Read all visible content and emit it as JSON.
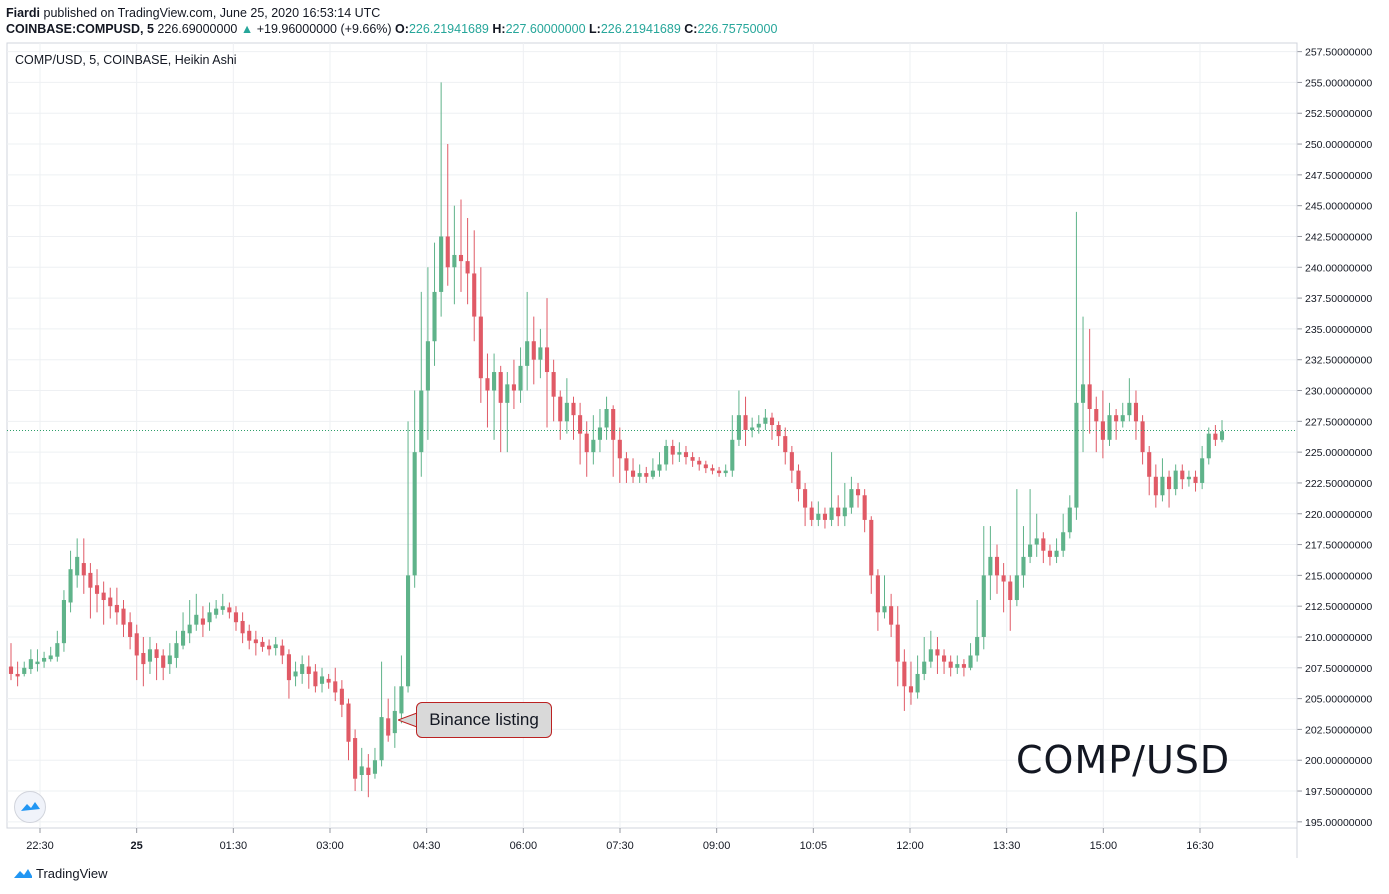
{
  "header": {
    "author": "Fiardi",
    "published": " published on TradingView.com, June 25, 2020 16:53:14 UTC",
    "symbol": "COINBASE:COMPUSD, 5",
    "last": "226.69000000",
    "change": "+19.96000000 (+9.66%)",
    "o_label": "O:",
    "o_value": "226.21941689",
    "h_label": "H:",
    "h_value": "227.60000000",
    "l_label": "L:",
    "l_value": "226.21941689",
    "c_label": "C:",
    "c_value": "226.75750000"
  },
  "legend_title": "COMP/USD, 5, COINBASE, Heikin Ashi",
  "big_label": "COMP/USD",
  "annotation": "Binance listing",
  "footer_brand": "TradingView",
  "colors": {
    "up": "#5fb38a",
    "down": "#e05a66",
    "grid": "#eef0f3",
    "price_line": "#2e9e6a"
  },
  "chart_data": {
    "type": "candlestick",
    "style": "Heikin Ashi",
    "y_range": [
      194.5,
      258.2
    ],
    "y_ticks": [
      195,
      197.5,
      200,
      202.5,
      205,
      207.5,
      210,
      212.5,
      215,
      217.5,
      220,
      222.5,
      225,
      227.5,
      230,
      232.5,
      235,
      237.5,
      240,
      242.5,
      245,
      247.5,
      250,
      252.5,
      255,
      257.5
    ],
    "y_tick_labels": [
      "195.00000000",
      "197.50000000",
      "200.00000000",
      "202.50000000",
      "205.00000000",
      "207.50000000",
      "210.00000000",
      "212.50000000",
      "215.00000000",
      "217.50000000",
      "220.00000000",
      "222.50000000",
      "225.00000000",
      "227.50000000",
      "230.00000000",
      "232.50000000",
      "235.00000000",
      "237.50000000",
      "240.00000000",
      "242.50000000",
      "245.00000000",
      "247.50000000",
      "250.00000000",
      "252.50000000",
      "255.00000000",
      "257.50000000"
    ],
    "x_labels": [
      "22:30",
      "25",
      "01:30",
      "03:00",
      "04:30",
      "06:00",
      "07:30",
      "09:00",
      "10:05",
      "12:00",
      "13:30",
      "15:00",
      "16:30"
    ],
    "current_price": 226.76,
    "grid": true,
    "candles": [
      [
        207.6,
        207.0,
        209.5,
        206.5
      ],
      [
        207.0,
        206.8,
        208.0,
        206.0
      ],
      [
        207.0,
        207.5,
        208.0,
        206.8
      ],
      [
        207.4,
        208.2,
        209.0,
        207.0
      ],
      [
        207.8,
        208.0,
        209.0,
        207.2
      ],
      [
        208.0,
        208.3,
        208.8,
        207.5
      ],
      [
        208.2,
        208.5,
        209.2,
        208.0
      ],
      [
        208.4,
        209.5,
        210.5,
        208.0
      ],
      [
        209.5,
        213.0,
        213.8,
        208.8
      ],
      [
        212.8,
        215.5,
        217.0,
        212.0
      ],
      [
        215.0,
        216.5,
        218.0,
        214.0
      ],
      [
        216.0,
        215.0,
        218.0,
        213.5
      ],
      [
        215.2,
        214.0,
        216.0,
        211.5
      ],
      [
        214.2,
        213.5,
        215.5,
        212.0
      ],
      [
        213.6,
        213.0,
        214.5,
        211.0
      ],
      [
        213.2,
        212.5,
        214.0,
        211.5
      ],
      [
        212.6,
        212.0,
        214.0,
        211.0
      ],
      [
        212.3,
        211.0,
        213.0,
        210.0
      ],
      [
        211.2,
        210.0,
        212.0,
        209.0
      ],
      [
        210.3,
        208.5,
        211.0,
        206.5
      ],
      [
        208.7,
        207.8,
        210.0,
        206.0
      ],
      [
        208.0,
        209.0,
        210.0,
        207.0
      ],
      [
        209.0,
        208.3,
        209.5,
        206.5
      ],
      [
        208.5,
        207.5,
        209.0,
        206.5
      ],
      [
        207.8,
        208.5,
        209.5,
        207.0
      ],
      [
        208.3,
        209.5,
        210.5,
        207.5
      ],
      [
        209.3,
        210.5,
        212.0,
        209.0
      ],
      [
        210.3,
        211.0,
        213.0,
        209.5
      ],
      [
        211.0,
        211.8,
        213.5,
        210.5
      ],
      [
        211.5,
        211.0,
        212.5,
        210.0
      ],
      [
        211.2,
        212.0,
        212.8,
        210.5
      ],
      [
        211.8,
        212.3,
        213.0,
        211.5
      ],
      [
        212.2,
        212.5,
        213.5,
        211.8
      ],
      [
        212.4,
        212.0,
        212.8,
        211.5
      ],
      [
        212.0,
        211.2,
        212.5,
        210.5
      ],
      [
        211.3,
        210.3,
        212.0,
        209.5
      ],
      [
        210.5,
        209.7,
        211.0,
        209.0
      ],
      [
        209.8,
        209.5,
        210.5,
        208.5
      ],
      [
        209.6,
        209.2,
        210.0,
        208.8
      ],
      [
        209.3,
        209.0,
        209.8,
        208.5
      ],
      [
        209.1,
        209.4,
        210.0,
        208.5
      ],
      [
        209.3,
        208.5,
        209.8,
        207.8
      ],
      [
        208.6,
        206.5,
        209.0,
        205.0
      ],
      [
        206.8,
        207.2,
        208.0,
        206.0
      ],
      [
        207.0,
        207.8,
        208.5,
        206.2
      ],
      [
        207.6,
        207.0,
        208.5,
        205.8
      ],
      [
        207.2,
        206.0,
        207.8,
        205.5
      ],
      [
        206.2,
        206.8,
        207.5,
        205.5
      ],
      [
        206.6,
        206.3,
        207.0,
        205.8
      ],
      [
        206.4,
        205.5,
        207.5,
        204.8
      ],
      [
        205.8,
        204.5,
        206.5,
        203.5
      ],
      [
        204.6,
        201.5,
        205.0,
        200.0
      ],
      [
        201.8,
        198.5,
        202.5,
        197.5
      ],
      [
        198.8,
        199.5,
        201.0,
        197.5
      ],
      [
        199.4,
        198.8,
        200.5,
        197.0
      ],
      [
        198.9,
        200.0,
        201.0,
        198.5
      ],
      [
        200.0,
        203.5,
        208.0,
        199.5
      ],
      [
        203.4,
        202.0,
        205.0,
        201.5
      ],
      [
        202.2,
        204.0,
        206.0,
        201.0
      ],
      [
        203.8,
        206.0,
        208.5,
        203.0
      ],
      [
        206.0,
        215.0,
        227.5,
        205.5
      ],
      [
        215.0,
        225.0,
        230.0,
        214.0
      ],
      [
        225.0,
        230.0,
        238.0,
        223.0
      ],
      [
        230.0,
        234.0,
        240.0,
        226.0
      ],
      [
        234.0,
        238.0,
        242.0,
        232.0
      ],
      [
        238.0,
        242.5,
        255.0,
        236.0
      ],
      [
        242.5,
        240.0,
        250.0,
        238.5
      ],
      [
        240.0,
        241.0,
        245.0,
        237.0
      ],
      [
        241.0,
        240.5,
        245.5,
        238.0
      ],
      [
        240.5,
        239.5,
        244.0,
        237.0
      ],
      [
        239.5,
        236.0,
        243.0,
        234.0
      ],
      [
        236.0,
        231.0,
        240.0,
        229.0
      ],
      [
        231.0,
        230.0,
        233.0,
        227.0
      ],
      [
        230.0,
        231.5,
        233.0,
        226.0
      ],
      [
        231.5,
        229.0,
        232.0,
        225.0
      ],
      [
        229.0,
        230.5,
        231.5,
        225.0
      ],
      [
        230.5,
        230.0,
        232.5,
        228.5
      ],
      [
        230.0,
        232.0,
        233.5,
        229.0
      ],
      [
        232.0,
        234.0,
        238.0,
        230.0
      ],
      [
        234.0,
        232.5,
        236.0,
        230.5
      ],
      [
        232.5,
        233.5,
        235.0,
        231.0
      ],
      [
        233.5,
        231.5,
        237.5,
        227.0
      ],
      [
        231.5,
        229.5,
        232.5,
        227.5
      ],
      [
        229.5,
        227.5,
        230.0,
        226.0
      ],
      [
        227.5,
        229.0,
        231.0,
        226.5
      ],
      [
        229.0,
        228.0,
        229.5,
        226.0
      ],
      [
        228.0,
        226.5,
        229.0,
        224.0
      ],
      [
        226.5,
        225.0,
        227.5,
        223.0
      ],
      [
        225.0,
        226.0,
        228.0,
        224.0
      ],
      [
        226.0,
        227.0,
        228.5,
        225.0
      ],
      [
        227.0,
        228.5,
        229.5,
        226.0
      ],
      [
        228.5,
        226.0,
        228.8,
        223.0
      ],
      [
        226.0,
        224.5,
        227.0,
        222.5
      ],
      [
        224.5,
        223.5,
        225.0,
        222.5
      ],
      [
        223.5,
        223.0,
        224.5,
        222.5
      ],
      [
        223.0,
        223.3,
        224.0,
        222.5
      ],
      [
        223.3,
        223.0,
        223.8,
        222.5
      ],
      [
        223.0,
        223.5,
        224.5,
        222.8
      ],
      [
        223.5,
        224.0,
        225.0,
        223.0
      ],
      [
        224.0,
        225.5,
        226.0,
        223.5
      ],
      [
        225.5,
        224.8,
        226.0,
        224.0
      ],
      [
        224.8,
        225.0,
        225.8,
        224.2
      ],
      [
        225.0,
        224.6,
        225.5,
        224.0
      ],
      [
        224.6,
        224.3,
        225.0,
        223.8
      ],
      [
        224.3,
        224.0,
        224.6,
        223.5
      ],
      [
        224.0,
        223.7,
        224.3,
        223.3
      ],
      [
        223.7,
        223.5,
        224.0,
        223.2
      ],
      [
        223.5,
        223.3,
        223.8,
        223.0
      ],
      [
        223.3,
        223.5,
        224.0,
        223.0
      ],
      [
        223.5,
        226.0,
        228.0,
        223.0
      ],
      [
        226.0,
        228.0,
        230.0,
        225.5
      ],
      [
        228.0,
        226.8,
        229.5,
        225.5
      ],
      [
        226.8,
        227.0,
        227.8,
        226.2
      ],
      [
        227.0,
        227.3,
        228.0,
        226.5
      ],
      [
        227.3,
        227.8,
        228.5,
        226.8
      ],
      [
        227.8,
        227.2,
        228.2,
        226.0
      ],
      [
        227.2,
        226.3,
        227.5,
        225.5
      ],
      [
        226.3,
        225.0,
        227.0,
        224.0
      ],
      [
        225.0,
        223.5,
        225.5,
        222.5
      ],
      [
        223.5,
        222.0,
        224.0,
        221.0
      ],
      [
        222.0,
        220.5,
        222.5,
        219.0
      ],
      [
        220.5,
        219.5,
        221.0,
        219.0
      ],
      [
        219.5,
        220.0,
        221.0,
        219.0
      ],
      [
        220.0,
        219.5,
        220.5,
        218.8
      ],
      [
        219.5,
        220.5,
        225.0,
        219.0
      ],
      [
        220.5,
        219.8,
        221.5,
        219.0
      ],
      [
        219.8,
        220.5,
        222.5,
        219.0
      ],
      [
        220.5,
        222.0,
        223.0,
        220.0
      ],
      [
        222.0,
        221.5,
        222.5,
        220.5
      ],
      [
        221.5,
        219.5,
        222.0,
        218.5
      ],
      [
        219.5,
        215.0,
        219.8,
        213.5
      ],
      [
        215.0,
        212.0,
        215.5,
        210.5
      ],
      [
        212.0,
        212.5,
        215.0,
        211.5
      ],
      [
        212.5,
        211.0,
        213.5,
        210.0
      ],
      [
        211.0,
        208.0,
        212.5,
        206.0
      ],
      [
        208.0,
        206.0,
        209.0,
        204.0
      ],
      [
        206.0,
        205.5,
        208.0,
        204.5
      ],
      [
        205.5,
        207.0,
        208.5,
        205.0
      ],
      [
        207.0,
        208.0,
        210.0,
        206.5
      ],
      [
        208.0,
        209.0,
        210.5,
        207.5
      ],
      [
        209.0,
        208.5,
        210.0,
        207.0
      ],
      [
        208.5,
        208.0,
        209.0,
        207.0
      ],
      [
        208.0,
        207.5,
        208.5,
        206.8
      ],
      [
        207.5,
        207.8,
        208.5,
        207.0
      ],
      [
        207.8,
        207.5,
        208.2,
        206.8
      ],
      [
        207.5,
        208.5,
        209.5,
        207.3
      ],
      [
        208.5,
        210.0,
        213.0,
        208.0
      ],
      [
        210.0,
        215.0,
        219.0,
        209.0
      ],
      [
        215.0,
        216.5,
        219.0,
        213.0
      ],
      [
        216.5,
        215.0,
        217.5,
        213.5
      ],
      [
        215.0,
        214.5,
        216.0,
        212.0
      ],
      [
        214.5,
        213.0,
        215.0,
        210.5
      ],
      [
        213.0,
        215.0,
        222.0,
        212.5
      ],
      [
        215.0,
        216.5,
        219.0,
        214.0
      ],
      [
        216.5,
        217.5,
        222.0,
        216.0
      ],
      [
        217.5,
        218.0,
        220.0,
        216.5
      ],
      [
        218.0,
        217.0,
        218.5,
        216.0
      ],
      [
        217.0,
        216.5,
        217.5,
        215.8
      ],
      [
        216.5,
        217.0,
        218.0,
        216.0
      ],
      [
        217.0,
        218.5,
        220.0,
        216.5
      ],
      [
        218.5,
        220.5,
        221.5,
        218.0
      ],
      [
        220.5,
        229.0,
        244.5,
        219.5
      ],
      [
        229.0,
        230.5,
        236.0,
        225.0
      ],
      [
        230.5,
        228.5,
        235.0,
        226.5
      ],
      [
        228.5,
        227.5,
        229.5,
        225.0
      ],
      [
        227.5,
        226.0,
        230.0,
        224.5
      ],
      [
        226.0,
        228.0,
        229.0,
        225.5
      ],
      [
        228.0,
        227.5,
        228.5,
        226.0
      ],
      [
        227.5,
        228.0,
        229.0,
        227.0
      ],
      [
        228.0,
        229.0,
        231.0,
        227.5
      ],
      [
        229.0,
        227.5,
        230.0,
        226.0
      ],
      [
        227.5,
        225.0,
        228.0,
        224.0
      ],
      [
        225.0,
        223.0,
        225.5,
        221.5
      ],
      [
        223.0,
        221.5,
        224.0,
        220.5
      ],
      [
        221.5,
        223.0,
        224.5,
        221.0
      ],
      [
        223.0,
        222.0,
        223.5,
        220.5
      ],
      [
        222.0,
        223.5,
        224.0,
        221.5
      ],
      [
        223.5,
        222.8,
        224.0,
        222.0
      ],
      [
        222.8,
        223.0,
        223.5,
        222.2
      ],
      [
        223.0,
        222.5,
        223.5,
        221.8
      ],
      [
        222.5,
        224.5,
        225.5,
        222.0
      ],
      [
        224.5,
        226.5,
        227.0,
        224.0
      ],
      [
        226.5,
        226.0,
        227.2,
        225.5
      ],
      [
        226.0,
        226.7,
        227.6,
        225.8
      ]
    ]
  }
}
